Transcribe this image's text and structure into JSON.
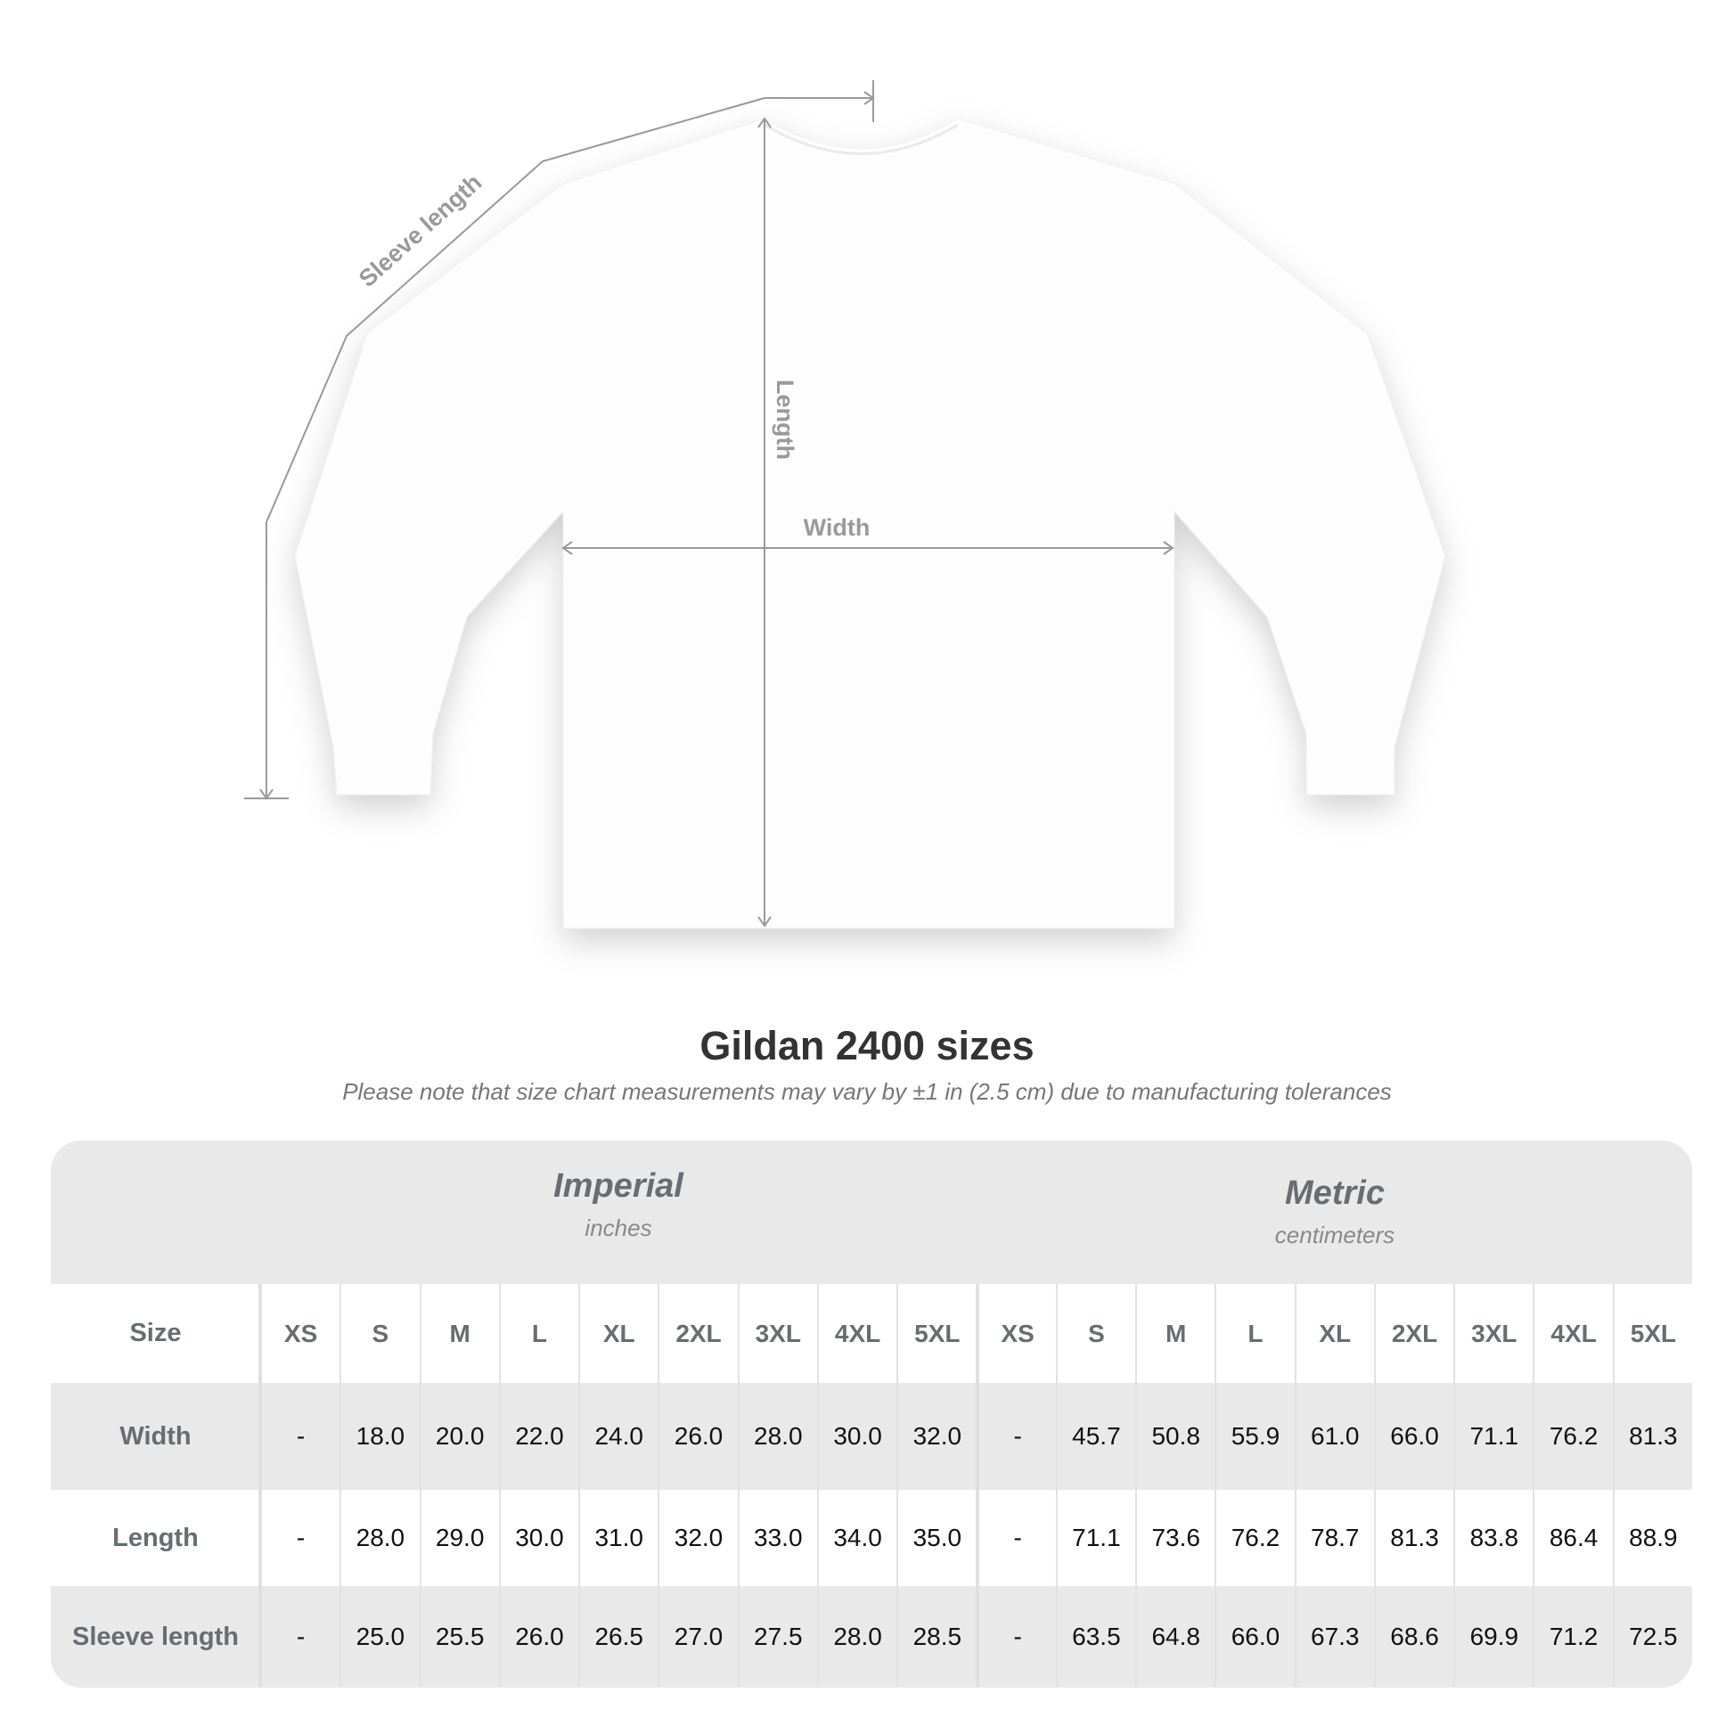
{
  "diagram": {
    "labels": {
      "sleeve": "Sleeve length",
      "length": "Length",
      "width": "Width"
    },
    "colors": {
      "measure_line": "#9a9a9a",
      "label": "#9a9a9a",
      "shirt": "#ffffff"
    }
  },
  "title": "Gildan 2400 sizes",
  "subtitle": "Please note that size chart measurements may vary by ±1 in (2.5 cm) due to manufacturing tolerances",
  "table": {
    "imperial": {
      "name": "Imperial",
      "unit": "inches"
    },
    "metric": {
      "name": "Metric",
      "unit": "centimeters"
    },
    "header": {
      "label": "Size",
      "imperial": [
        "XS",
        "S",
        "M",
        "L",
        "XL",
        "2XL",
        "3XL",
        "4XL",
        "5XL"
      ],
      "metric": [
        "XS",
        "S",
        "M",
        "L",
        "XL",
        "2XL",
        "3XL",
        "4XL",
        "5XL"
      ]
    },
    "rows": [
      {
        "label": "Width",
        "imperial": [
          "-",
          "18.0",
          "20.0",
          "22.0",
          "24.0",
          "26.0",
          "28.0",
          "30.0",
          "32.0"
        ],
        "metric": [
          "-",
          "45.7",
          "50.8",
          "55.9",
          "61.0",
          "66.0",
          "71.1",
          "76.2",
          "81.3"
        ]
      },
      {
        "label": "Length",
        "imperial": [
          "-",
          "28.0",
          "29.0",
          "30.0",
          "31.0",
          "32.0",
          "33.0",
          "34.0",
          "35.0"
        ],
        "metric": [
          "-",
          "71.1",
          "73.6",
          "76.2",
          "78.7",
          "81.3",
          "83.8",
          "86.4",
          "88.9"
        ]
      },
      {
        "label": "Sleeve length",
        "imperial": [
          "-",
          "25.0",
          "25.5",
          "26.0",
          "26.5",
          "27.0",
          "27.5",
          "28.0",
          "28.5"
        ],
        "metric": [
          "-",
          "63.5",
          "64.8",
          "66.0",
          "67.3",
          "68.6",
          "69.9",
          "71.2",
          "72.5"
        ]
      }
    ],
    "colors": {
      "band": "#e9e9e9",
      "header_text": "#676d70"
    }
  }
}
